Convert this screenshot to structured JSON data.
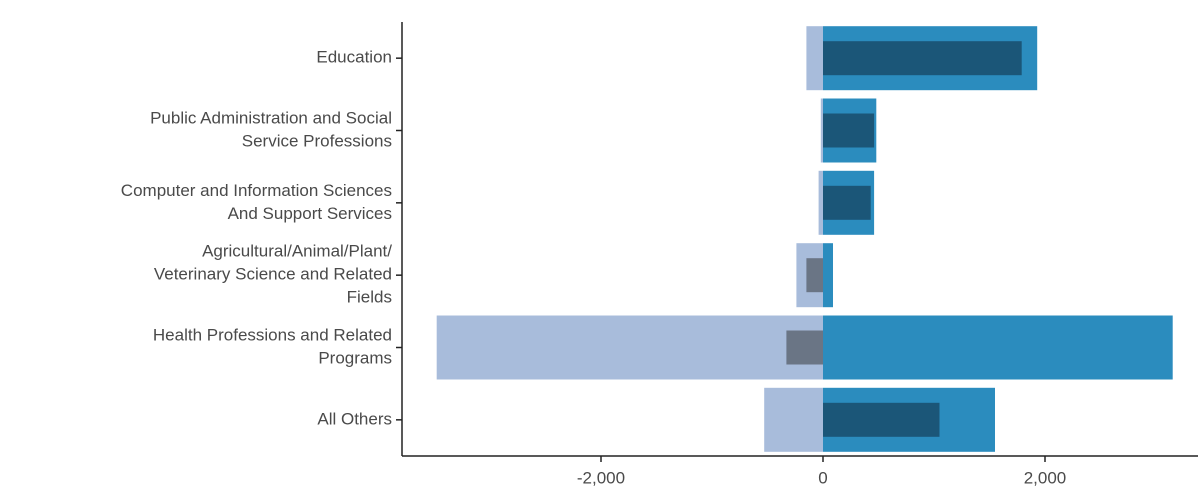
{
  "chart_data": {
    "type": "bar",
    "orientation": "horizontal",
    "title": "",
    "xlabel": "",
    "ylabel": "",
    "xlim": [
      -3900,
      3350
    ],
    "xticks": [
      -2000,
      0,
      2000
    ],
    "xtick_labels": [
      "-2,000",
      "0",
      "2,000"
    ],
    "grid": false,
    "categories": [
      {
        "lines": [
          "Education"
        ]
      },
      {
        "lines": [
          "Public Administration and Social",
          "Service Professions"
        ]
      },
      {
        "lines": [
          "Computer and Information Sciences",
          "And Support Services"
        ]
      },
      {
        "lines": [
          "Agricultural/Animal/Plant/",
          "Veterinary Science and Related",
          "Fields"
        ]
      },
      {
        "lines": [
          "Health Professions and Related",
          "Programs"
        ]
      },
      {
        "lines": [
          "All Others"
        ]
      }
    ],
    "series": [
      {
        "color": "#a8bcdb",
        "role": "wide",
        "values": [
          -150,
          -20,
          -40,
          -240,
          -3480,
          -530
        ]
      },
      {
        "color": "#2b8cbe",
        "role": "wide",
        "values": [
          1930,
          480,
          460,
          90,
          3150,
          1550
        ]
      },
      {
        "color": "#6a7585",
        "role": "narrow",
        "values": [
          0,
          0,
          0,
          -150,
          -330,
          0
        ]
      },
      {
        "color": "#1b5678",
        "role": "narrow",
        "values": [
          1790,
          460,
          430,
          0,
          0,
          1050
        ]
      }
    ]
  }
}
